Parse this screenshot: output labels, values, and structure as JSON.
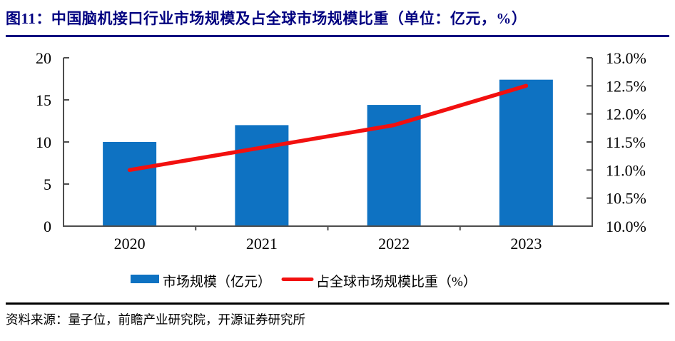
{
  "title": {
    "text": "图11：中国脑机接口行业市场规模及占全球市场规模比重（单位：亿元，%）"
  },
  "source": {
    "text": "资料来源：量子位，前瞻产业研究院，开源证券研究所"
  },
  "colors": {
    "title": "#000080",
    "bar": "#0e72c2",
    "line": "#f2100f",
    "axis": "#4d4d4d",
    "tick_text": "#000000",
    "rule_top": "#000080",
    "rule_bottom": "#000000"
  },
  "chart_data": {
    "type": "combo",
    "categories": [
      "2020",
      "2021",
      "2022",
      "2023"
    ],
    "series": [
      {
        "name": "市场规模（亿元）",
        "type": "bar",
        "axis": "left",
        "values": [
          10.0,
          12.0,
          14.4,
          17.4
        ]
      },
      {
        "name": "占全球市场规模比重（%）",
        "type": "line",
        "axis": "right",
        "values": [
          11.0,
          11.4,
          11.8,
          12.5
        ]
      }
    ],
    "left_axis": {
      "min": 0,
      "max": 20,
      "tick_values": [
        0,
        5,
        10,
        15,
        20
      ],
      "tick_labels": [
        "0",
        "5",
        "10",
        "15",
        "20"
      ]
    },
    "right_axis": {
      "min": 10,
      "max": 13,
      "tick_values": [
        10,
        10.5,
        11,
        11.5,
        12,
        12.5,
        13
      ],
      "tick_labels": [
        "10.0%",
        "10.5%",
        "11.0%",
        "11.5%",
        "12.0%",
        "12.5%",
        "13.0%"
      ]
    },
    "grid": "off",
    "legend_position": "bottom",
    "title": "图11：中国脑机接口行业市场规模及占全球市场规模比重（单位：亿元，%）"
  }
}
